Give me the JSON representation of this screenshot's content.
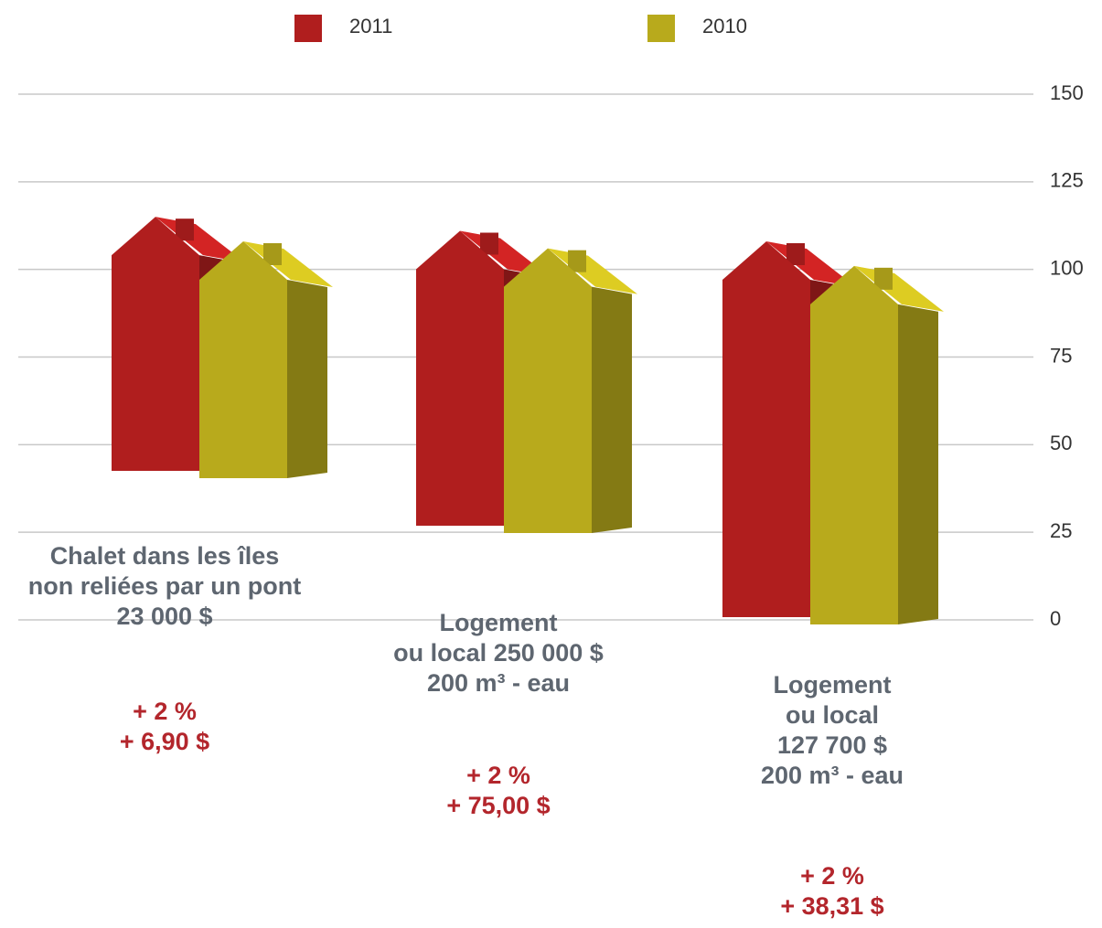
{
  "chart_data": {
    "type": "bar",
    "categories": [
      "Chalet dans les îles\nnon reliées par un pont\n23 000 $",
      "Logement\nou local 250 000 $\n200 m³ - eau",
      "Logement\nou local\n127 700 $\n200 m³  - eau"
    ],
    "series": [
      {
        "name": "2011",
        "color": "#b01e1e",
        "values": [
          115,
          111,
          108
        ]
      },
      {
        "name": "2010",
        "color": "#b8aa1c",
        "values": [
          108,
          106,
          101
        ]
      }
    ],
    "annotations": [
      "+ 2 %\n+ 6,90 $",
      "+ 2 %\n+ 75,00 $",
      "+ 2 %\n+ 38,31 $"
    ],
    "ylim": [
      0,
      150
    ],
    "yticks": [
      0,
      25,
      50,
      75,
      100,
      125,
      150
    ],
    "grid": true
  }
}
